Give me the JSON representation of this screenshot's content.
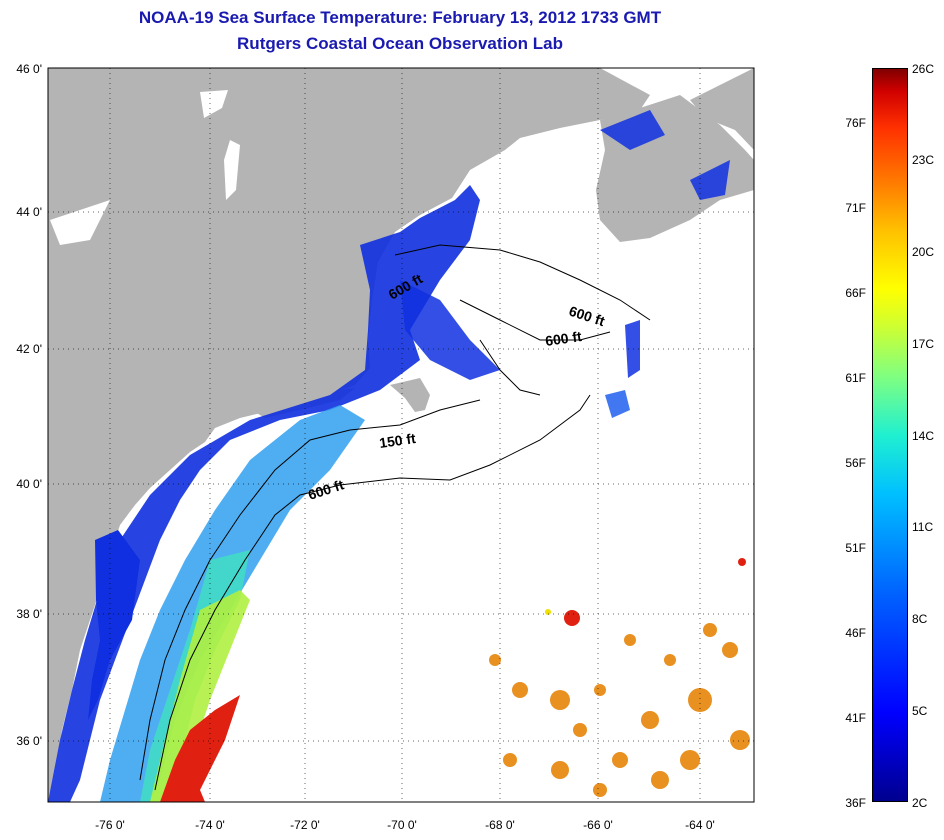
{
  "title": {
    "line1": "NOAA-19 Sea Surface Temperature:  February 13, 2012 1733 GMT",
    "line2": "Rutgers Coastal Ocean Observation Lab"
  },
  "axes": {
    "lat_labels": [
      "46 0'",
      "44 0'",
      "42 0'",
      "40 0'",
      "38 0'",
      "36 0'"
    ],
    "lon_labels": [
      "-76 0'",
      "-74 0'",
      "-72 0'",
      "-70 0'",
      "-68 0'",
      "-66 0'",
      "-64 0'"
    ]
  },
  "isobaths": {
    "label_600_gom1": "600 ft",
    "label_600_gom2": "600 ft",
    "label_600_gb": "600 ft",
    "label_150": "150 ft",
    "label_600_shelf": "600 ft"
  },
  "colorbar": {
    "fahrenheit": [
      "76F",
      "71F",
      "66F",
      "61F",
      "56F",
      "51F",
      "46F",
      "41F",
      "36F"
    ],
    "celsius": [
      "26C",
      "23C",
      "20C",
      "17C",
      "14C",
      "11C",
      "8C",
      "5C",
      "2C"
    ],
    "colors": [
      "#00008f",
      "#0000ff",
      "#00c0ff",
      "#80ff80",
      "#ffff00",
      "#ff8000",
      "#d00000",
      "#800000"
    ]
  },
  "colors": {
    "land": "#b4b4b4",
    "cold_coastal": "#1030e0",
    "shelf": "#30a0f0",
    "warm_gulfstream": "#e02010",
    "offshore_patches": "#e89020",
    "title": "#1a1ab0"
  }
}
